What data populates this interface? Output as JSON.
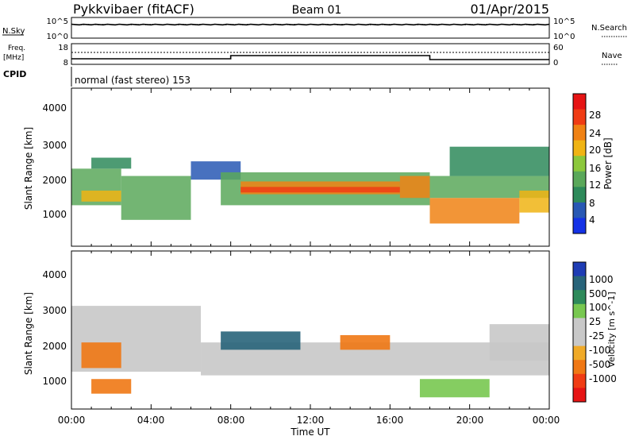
{
  "header": {
    "radar": "Pykkvibaer (fitACF)",
    "beam": "Beam 01",
    "date": "01/Apr/2015"
  },
  "top_panel": {
    "nsky_label": "N.Sky",
    "nsky_ticks": [
      "10^5",
      "10^0"
    ],
    "nsearch_ticks": [
      "10^5",
      "10^0"
    ],
    "nsearch_label": "N.Search",
    "freq_label_1": "Freq.",
    "freq_label_2": "[MHz]",
    "freq_ticks": [
      "18",
      "8"
    ],
    "nave_ticks": [
      "60",
      "0"
    ],
    "nave_label": "Nave",
    "cpid_label": "CPID",
    "cpid_text": "normal (fast stereo) 153"
  },
  "colors": {
    "power_scale": [
      "#1432e6",
      "#2858b4",
      "#2e8a5a",
      "#5aa85a",
      "#8cc83c",
      "#f0b414",
      "#f08214",
      "#f03c14",
      "#e61414"
    ],
    "velocity_scale": [
      "#1e3cb4",
      "#28647a",
      "#2e8a5a",
      "#78c850",
      "#c8c8c8",
      "#c8c8c8",
      "#f0aa28",
      "#f07814",
      "#f03c14",
      "#e61414"
    ]
  },
  "chart_data": [
    {
      "type": "heatmap",
      "panel": "power",
      "ylabel": "Slant Range [km]",
      "ylim": [
        180,
        4500
      ],
      "y_ticks": [
        "1000",
        "2000",
        "3000",
        "4000"
      ],
      "colorbar_label": "Power [dB]",
      "colorbar_ticks": [
        "28",
        "24",
        "20",
        "16",
        "12",
        "8",
        "4"
      ],
      "colorbar_range": [
        0,
        32
      ],
      "bands": [
        {
          "t0": 0.0,
          "t1": 2.5,
          "r0": 1300,
          "r1": 2300,
          "value": 13
        },
        {
          "t0": 0.5,
          "t1": 2.5,
          "r0": 1400,
          "r1": 1700,
          "value": 20
        },
        {
          "t0": 1.0,
          "t1": 3.0,
          "r0": 2300,
          "r1": 2600,
          "value": 10
        },
        {
          "t0": 2.5,
          "t1": 6.0,
          "r0": 900,
          "r1": 2100,
          "value": 12
        },
        {
          "t0": 6.0,
          "t1": 8.5,
          "r0": 2000,
          "r1": 2500,
          "value": 6
        },
        {
          "t0": 7.5,
          "t1": 18.0,
          "r0": 1300,
          "r1": 2200,
          "value": 12
        },
        {
          "t0": 8.5,
          "t1": 16.5,
          "r0": 1600,
          "r1": 1950,
          "value": 22
        },
        {
          "t0": 8.5,
          "t1": 16.5,
          "r0": 1650,
          "r1": 1800,
          "value": 26
        },
        {
          "t0": 16.5,
          "t1": 18.0,
          "r0": 1500,
          "r1": 2100,
          "value": 24
        },
        {
          "t0": 18.0,
          "t1": 22.5,
          "r0": 800,
          "r1": 1500,
          "value": 22
        },
        {
          "t0": 18.0,
          "t1": 24.0,
          "r0": 1500,
          "r1": 2100,
          "value": 12
        },
        {
          "t0": 22.5,
          "t1": 24.0,
          "r0": 1100,
          "r1": 1700,
          "value": 20
        },
        {
          "t0": 19.0,
          "t1": 24.0,
          "r0": 2100,
          "r1": 2900,
          "value": 8
        }
      ]
    },
    {
      "type": "heatmap",
      "panel": "velocity",
      "ylabel": "Slant Range [km]",
      "xlabel": "Time UT",
      "ylim": [
        180,
        4500
      ],
      "y_ticks": [
        "1000",
        "2000",
        "3000",
        "4000"
      ],
      "x_ticks": [
        "00:00",
        "04:00",
        "08:00",
        "12:00",
        "16:00",
        "20:00",
        "00:00"
      ],
      "colorbar_label": "Velocity [m s^-1]",
      "colorbar_ticks": [
        "1000",
        "500",
        "100",
        "25",
        "-25",
        "-100",
        "-500",
        "-1000"
      ],
      "bands": [
        {
          "t0": 0.0,
          "t1": 6.5,
          "r0": 1200,
          "r1": 3000,
          "value": 0
        },
        {
          "t0": 0.5,
          "t1": 2.5,
          "r0": 1300,
          "r1": 2000,
          "value": -300
        },
        {
          "t0": 1.0,
          "t1": 3.0,
          "r0": 600,
          "r1": 1000,
          "value": -500
        },
        {
          "t0": 6.5,
          "t1": 24.0,
          "r0": 1100,
          "r1": 2000,
          "value": 0
        },
        {
          "t0": 7.5,
          "t1": 11.5,
          "r0": 1800,
          "r1": 2300,
          "value": 700
        },
        {
          "t0": 13.5,
          "t1": 16.0,
          "r0": 1800,
          "r1": 2200,
          "value": -300
        },
        {
          "t0": 17.5,
          "t1": 21.0,
          "r0": 500,
          "r1": 1000,
          "value": 80
        },
        {
          "t0": 21.0,
          "t1": 24.0,
          "r0": 1500,
          "r1": 2500,
          "value": 0
        }
      ]
    }
  ]
}
